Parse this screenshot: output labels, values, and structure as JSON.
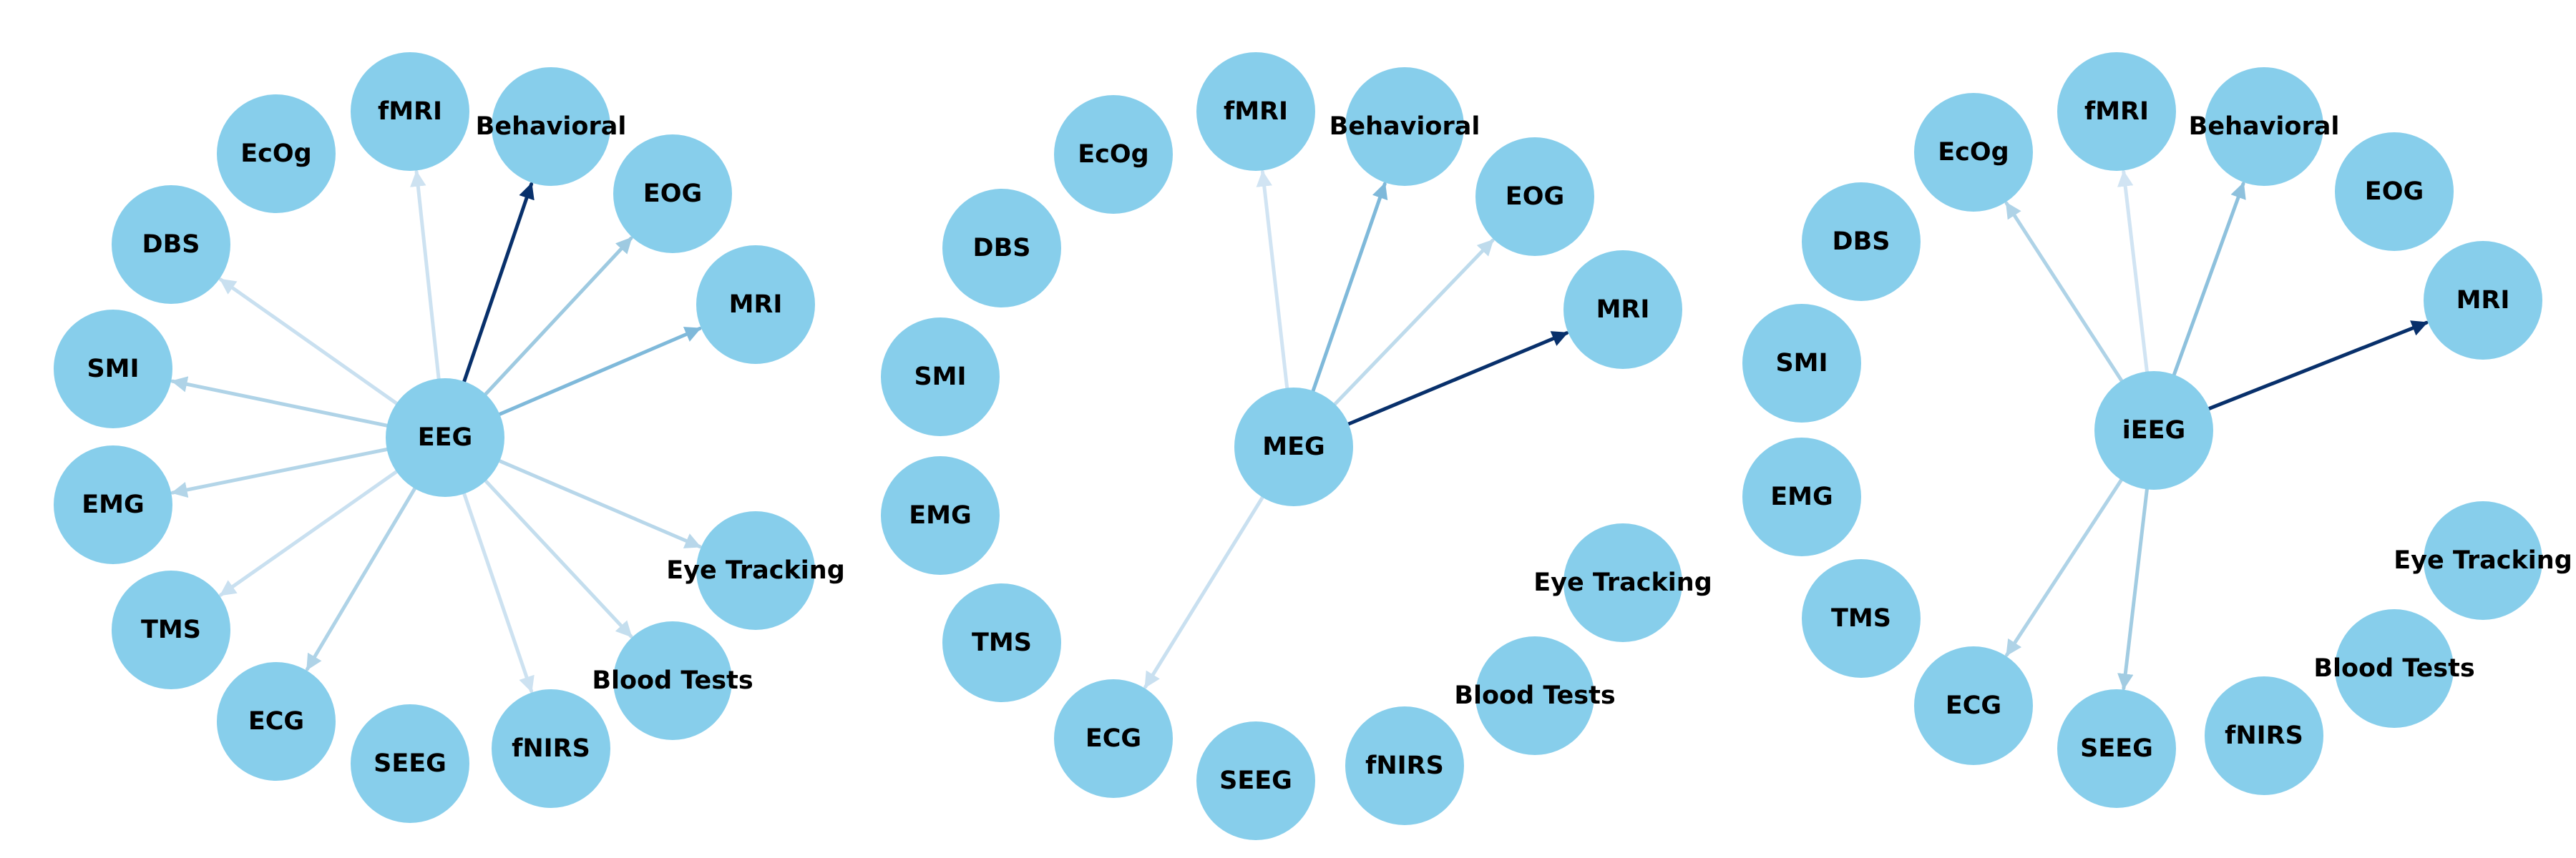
{
  "colors": {
    "node_fill": "#87ceeb",
    "label": "#000000",
    "background": "#ffffff"
  },
  "graphs": [
    {
      "center": "EEG",
      "nodes": [
        "EEG",
        "fMRI",
        "Behavioral",
        "EOG",
        "MRI",
        "Eye Tracking",
        "Blood Tests",
        "fNIRS",
        "SEEG",
        "ECG",
        "TMS",
        "EMG",
        "SMI",
        "DBS",
        "EcOg"
      ],
      "edges": [
        {
          "to": "Behavioral",
          "strength": 1.0,
          "arrow": true
        },
        {
          "to": "EOG",
          "strength": 0.3,
          "arrow": true
        },
        {
          "to": "MRI",
          "strength": 0.45,
          "arrow": true
        },
        {
          "to": "Eye Tracking",
          "strength": 0.18,
          "arrow": true
        },
        {
          "to": "Blood Tests",
          "strength": 0.12,
          "arrow": true
        },
        {
          "to": "fNIRS",
          "strength": 0.08,
          "arrow": true
        },
        {
          "to": "ECG",
          "strength": 0.22,
          "arrow": true
        },
        {
          "to": "TMS",
          "strength": 0.1,
          "arrow": true
        },
        {
          "to": "EMG",
          "strength": 0.2,
          "arrow": true
        },
        {
          "to": "SMI",
          "strength": 0.22,
          "arrow": true
        },
        {
          "to": "DBS",
          "strength": 0.1,
          "arrow": true
        },
        {
          "to": "fMRI",
          "strength": 0.08,
          "arrow": true
        }
      ]
    },
    {
      "center": "MEG",
      "nodes": [
        "MEG",
        "fMRI",
        "Behavioral",
        "EOG",
        "MRI",
        "Eye Tracking",
        "Blood Tests",
        "fNIRS",
        "SEEG",
        "ECG",
        "TMS",
        "EMG",
        "SMI",
        "DBS",
        "EcOg"
      ],
      "edges": [
        {
          "to": "MRI",
          "strength": 1.0,
          "arrow": true
        },
        {
          "to": "Behavioral",
          "strength": 0.45,
          "arrow": true
        },
        {
          "to": "EOG",
          "strength": 0.15,
          "arrow": true
        },
        {
          "to": "fMRI",
          "strength": 0.06,
          "arrow": true
        },
        {
          "to": "ECG",
          "strength": 0.1,
          "arrow": true
        }
      ]
    },
    {
      "center": "iEEG",
      "nodes": [
        "iEEG",
        "fMRI",
        "Behavioral",
        "EOG",
        "MRI",
        "Eye Tracking",
        "Blood Tests",
        "fNIRS",
        "SEEG",
        "ECG",
        "TMS",
        "EMG",
        "SMI",
        "DBS",
        "EcOg"
      ],
      "edges": [
        {
          "to": "MRI",
          "strength": 1.0,
          "arrow": true
        },
        {
          "to": "Behavioral",
          "strength": 0.38,
          "arrow": true
        },
        {
          "to": "EcOg",
          "strength": 0.22,
          "arrow": true
        },
        {
          "to": "ECG",
          "strength": 0.22,
          "arrow": true
        },
        {
          "to": "SEEG",
          "strength": 0.28,
          "arrow": true
        },
        {
          "to": "fMRI",
          "strength": 0.06,
          "arrow": true
        }
      ]
    }
  ]
}
